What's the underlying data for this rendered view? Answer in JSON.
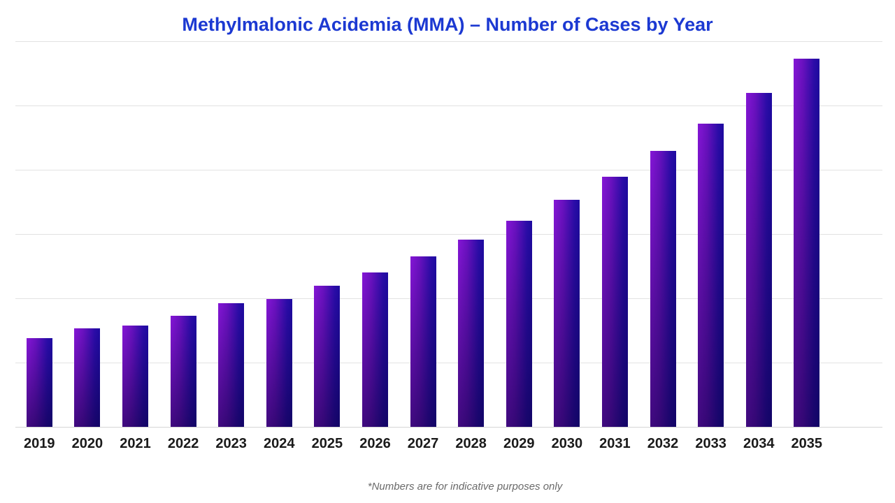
{
  "title": "Methylmalonic Acidemia (MMA) – Number of Cases by Year",
  "footnote": "*Numbers are for indicative purposes only",
  "colors": {
    "title_text": "#1c39d2",
    "bar_gradient_top_left": "#8516d6",
    "bar_gradient_right": "#1e0aa0",
    "bar_gradient_bottom": "#140a80",
    "gridline": "#e2e2e2",
    "axis_label_text": "#1a1a1a",
    "footnote_text": "#6a6a6a"
  },
  "chart_data": {
    "type": "bar",
    "title": "Methylmalonic Acidemia (MMA) – Number of Cases by Year",
    "categories": [
      "2019",
      "2020",
      "2021",
      "2022",
      "2023",
      "2024",
      "2025",
      "2026",
      "2027",
      "2028",
      "2029",
      "2030",
      "2031",
      "2032",
      "2033",
      "2034",
      "2035"
    ],
    "values": [
      138,
      153,
      158,
      173,
      192,
      199,
      220,
      240,
      265,
      291,
      321,
      353,
      389,
      429,
      472,
      520,
      573
    ],
    "xlabel": "",
    "ylabel": "",
    "ylim": [
      0,
      600
    ],
    "y_axis_tick_labels_visible": false,
    "gridlines": "horizontal",
    "gridline_interval": 100,
    "legend": "none",
    "annotation": "*Numbers are for indicative purposes only"
  }
}
